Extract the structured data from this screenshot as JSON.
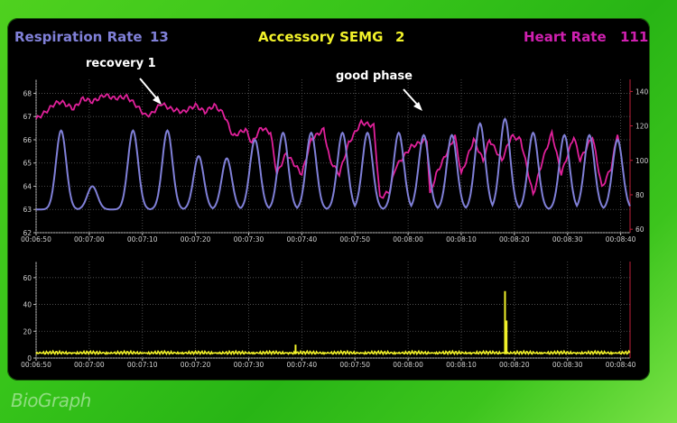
{
  "header": {
    "respiration_label": "Respiration Rate",
    "respiration_value": "13",
    "semg_label": "Accessory SEMG",
    "semg_value": "2",
    "heart_label": "Heart Rate",
    "heart_value": "111"
  },
  "annotations": {
    "recovery": "recovery 1",
    "good_phase": "good phase"
  },
  "logo_text": "BioGraph",
  "colors": {
    "respiration": "#8080d8",
    "semg": "#f2f22a",
    "heart": "#e0209a",
    "panel": "#000000",
    "background": "#3cc41d"
  },
  "chart_data": [
    {
      "type": "line",
      "x_ticks": [
        "00:06:50",
        "00:07:00",
        "00:07:10",
        "00:07:20",
        "00:07:30",
        "00:07:40",
        "00:07:50",
        "00:08:00",
        "00:08:10",
        "00:08:20",
        "00:08:30",
        "00:08:40"
      ],
      "y_left_ticks": [
        "62",
        "63",
        "64",
        "65",
        "66",
        "67",
        "68"
      ],
      "y_left_range": [
        62,
        68.6
      ],
      "y_right_ticks": [
        "60",
        "80",
        "100",
        "120",
        "140"
      ],
      "y_right_range": [
        58,
        147
      ],
      "grid": true,
      "series": [
        {
          "name": "Respiration Rate",
          "axis": "left",
          "breath_peaks": [
            {
              "t": 8,
              "y": 66.4
            },
            {
              "t": 18,
              "y": 64.0
            },
            {
              "t": 31,
              "y": 66.4
            },
            {
              "t": 42,
              "y": 66.4
            },
            {
              "t": 52,
              "y": 65.3
            },
            {
              "t": 61,
              "y": 65.2
            },
            {
              "t": 70,
              "y": 66.0
            },
            {
              "t": 79,
              "y": 66.3
            },
            {
              "t": 88,
              "y": 66.3
            },
            {
              "t": 98,
              "y": 66.3
            },
            {
              "t": 106,
              "y": 66.3
            },
            {
              "t": 116,
              "y": 66.3
            },
            {
              "t": 124,
              "y": 66.2
            },
            {
              "t": 133,
              "y": 66.2
            },
            {
              "t": 142,
              "y": 66.7
            },
            {
              "t": 150,
              "y": 66.9
            },
            {
              "t": 159,
              "y": 66.3
            },
            {
              "t": 169,
              "y": 66.2
            },
            {
              "t": 177,
              "y": 66.2
            },
            {
              "t": 186,
              "y": 66.0
            }
          ],
          "trough_value": 63.0
        },
        {
          "name": "Heart Rate",
          "axis": "right",
          "points": [
            [
              0,
              124
            ],
            [
              3,
              128
            ],
            [
              6,
              133
            ],
            [
              8,
              134
            ],
            [
              12,
              130
            ],
            [
              15,
              136
            ],
            [
              18,
              134
            ],
            [
              22,
              138
            ],
            [
              25,
              136
            ],
            [
              29,
              137
            ],
            [
              32,
              132
            ],
            [
              35,
              126
            ],
            [
              37,
              127
            ],
            [
              40,
              133
            ],
            [
              43,
              130
            ],
            [
              47,
              128
            ],
            [
              51,
              132
            ],
            [
              54,
              128
            ],
            [
              57,
              132
            ],
            [
              60,
              127
            ],
            [
              63,
              114
            ],
            [
              67,
              118
            ],
            [
              69,
              110
            ],
            [
              72,
              119
            ],
            [
              75,
              116
            ],
            [
              77,
              92
            ],
            [
              80,
              104
            ],
            [
              85,
              92
            ],
            [
              88,
              112
            ],
            [
              92,
              118
            ],
            [
              94,
              100
            ],
            [
              97,
              92
            ],
            [
              100,
              110
            ],
            [
              104,
              122
            ],
            [
              108,
              120
            ],
            [
              110,
              78
            ],
            [
              113,
              82
            ],
            [
              115,
              96
            ],
            [
              120,
              108
            ],
            [
              125,
              112
            ],
            [
              126,
              80
            ],
            [
              128,
              92
            ],
            [
              134,
              114
            ],
            [
              136,
              92
            ],
            [
              140,
              112
            ],
            [
              143,
              100
            ],
            [
              145,
              112
            ],
            [
              149,
              100
            ],
            [
              152,
              114
            ],
            [
              155,
              112
            ],
            [
              159,
              80
            ],
            [
              162,
              100
            ],
            [
              165,
              116
            ],
            [
              168,
              92
            ],
            [
              172,
              114
            ],
            [
              174,
              100
            ],
            [
              178,
              114
            ],
            [
              181,
              84
            ],
            [
              184,
              96
            ],
            [
              186,
              116
            ],
            [
              187,
              104
            ]
          ]
        }
      ]
    },
    {
      "type": "line",
      "x_ticks": [
        "00:06:50",
        "00:07:00",
        "00:07:10",
        "00:07:20",
        "00:07:30",
        "00:07:40",
        "00:07:50",
        "00:08:00",
        "00:08:10",
        "00:08:20",
        "00:08:30",
        "00:08:40"
      ],
      "y_ticks": [
        "0",
        "20",
        "40",
        "60"
      ],
      "y_range": [
        0,
        72
      ],
      "grid": true,
      "series": [
        {
          "name": "Accessory SEMG",
          "baseline": 3,
          "spikes": [
            [
              83,
              10
            ],
            [
              150,
              50
            ],
            [
              150.5,
              28
            ]
          ]
        }
      ]
    }
  ]
}
